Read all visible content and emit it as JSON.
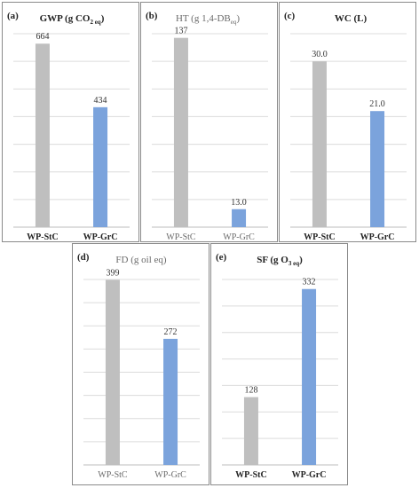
{
  "chart_data": [
    {
      "type": "bar",
      "letter": "(a)",
      "title": {
        "main": "GWP (g CO",
        "sub": "2 eq",
        "tail": ")"
      },
      "categories": [
        "WP-StC",
        "WP-GrC"
      ],
      "values": [
        664,
        434
      ],
      "value_labels": [
        "664",
        "434"
      ],
      "ylim": [
        0,
        700
      ],
      "grid": true,
      "colors": [
        "#bfbfbf",
        "#7ba3dc"
      ]
    },
    {
      "type": "bar",
      "letter": "(b)",
      "title": {
        "main": "HT (g 1,4-DB",
        "sub": "eq",
        "tail": ")"
      },
      "categories": [
        "WP-StC",
        "WP-GrC"
      ],
      "values": [
        137,
        13.0
      ],
      "value_labels": [
        "137",
        "13.0"
      ],
      "ylim": [
        0,
        140
      ],
      "grid": true,
      "colors": [
        "#bfbfbf",
        "#7ba3dc"
      ]
    },
    {
      "type": "bar",
      "letter": "(c)",
      "title": {
        "main": "WC (L)",
        "sub": "",
        "tail": ""
      },
      "categories": [
        "WP-StC",
        "WP-GrC"
      ],
      "values": [
        30.0,
        21.0
      ],
      "value_labels": [
        "30.0",
        "21.0"
      ],
      "ylim": [
        0,
        35
      ],
      "grid": true,
      "colors": [
        "#bfbfbf",
        "#7ba3dc"
      ]
    },
    {
      "type": "bar",
      "letter": "(d)",
      "title": {
        "main": "FD (g oil eq)",
        "sub": "",
        "tail": ""
      },
      "categories": [
        "WP-StC",
        "WP-GrC"
      ],
      "values": [
        399,
        272
      ],
      "value_labels": [
        "399",
        "272"
      ],
      "ylim": [
        0,
        400
      ],
      "grid": true,
      "colors": [
        "#bfbfbf",
        "#7ba3dc"
      ]
    },
    {
      "type": "bar",
      "letter": "(e)",
      "title": {
        "main": "SF (g O",
        "sub": "3 eq",
        "tail": ")"
      },
      "categories": [
        "WP-StC",
        "WP-GrC"
      ],
      "values": [
        128,
        332
      ],
      "value_labels": [
        "128",
        "332"
      ],
      "ylim": [
        0,
        350
      ],
      "grid": true,
      "colors": [
        "#bfbfbf",
        "#7ba3dc"
      ]
    }
  ]
}
